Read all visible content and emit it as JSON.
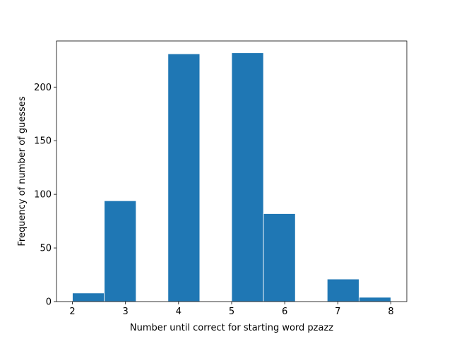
{
  "chart_data": {
    "type": "bar",
    "title": "",
    "xlabel": "Number until correct for starting word pzazz",
    "ylabel": "Frequency of number of guesses",
    "xlim": [
      1.7,
      8.3
    ],
    "ylim": [
      0,
      243
    ],
    "xticks": [
      2,
      3,
      4,
      5,
      6,
      7,
      8
    ],
    "yticks": [
      0,
      50,
      100,
      150,
      200
    ],
    "bin_edges": [
      2,
      2.6,
      3.2,
      3.8,
      4.4,
      5,
      5.6,
      6.2,
      6.8,
      7.4,
      8
    ],
    "values": [
      8,
      94,
      0,
      231,
      0,
      232,
      82,
      0,
      21,
      4
    ],
    "bar_color": "#1f77b4",
    "grid": false,
    "legend": "none"
  }
}
